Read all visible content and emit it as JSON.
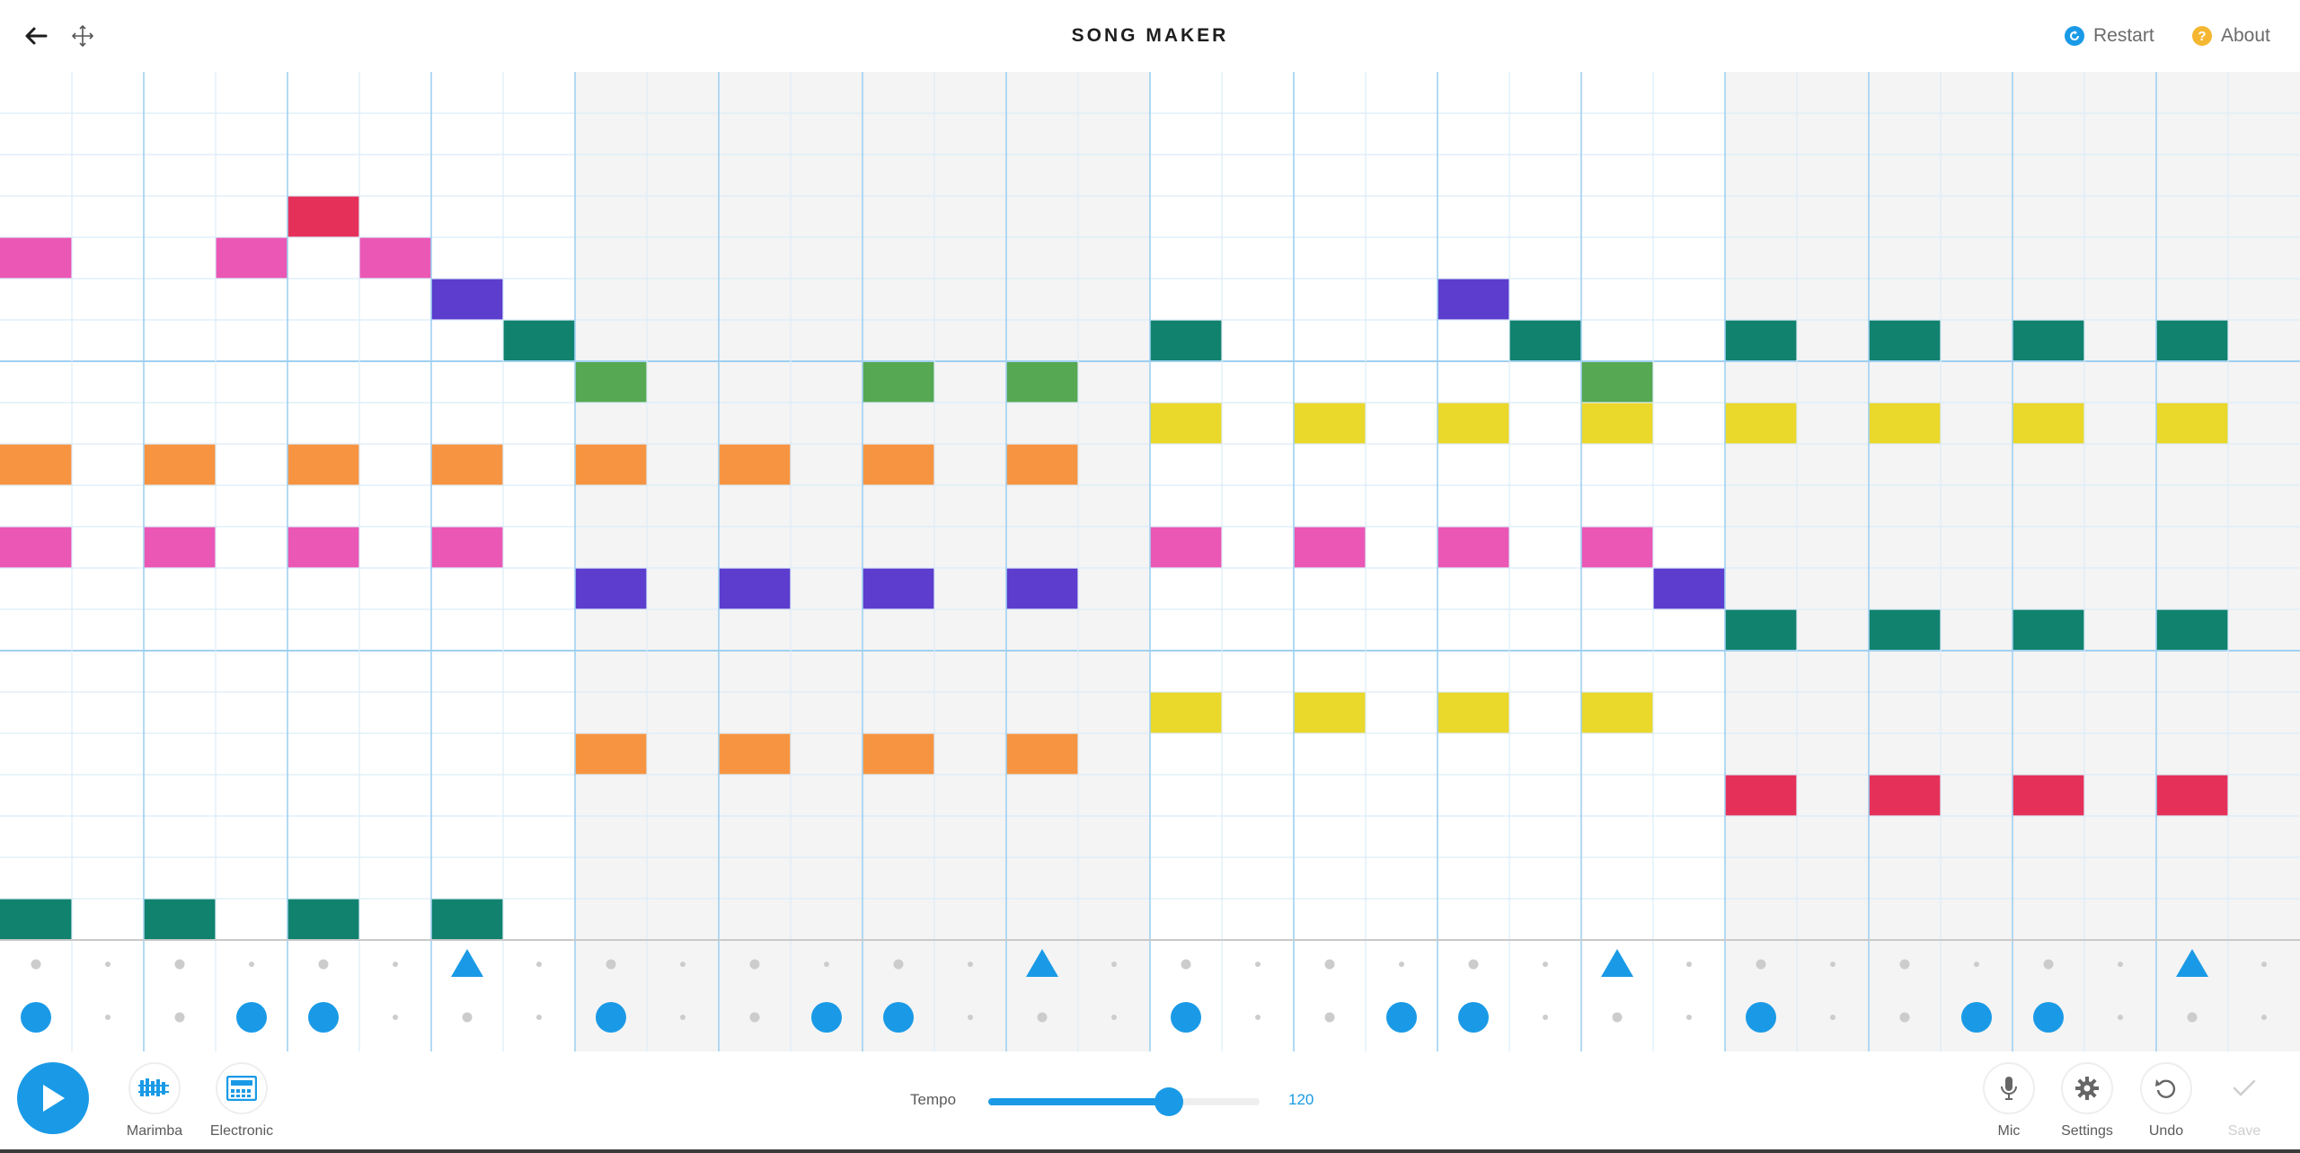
{
  "header": {
    "title": "SONG MAKER",
    "back_icon": "arrow-left-icon",
    "move_icon": "move-arrows-icon",
    "restart_label": "Restart",
    "about_label": "About",
    "restart_icon_color": "#1a9ae6",
    "about_icon_color": "#f5b731"
  },
  "grid": {
    "columns": 32,
    "melody_rows": 21,
    "beats_per_bar": 8,
    "row_divider_every": 7,
    "instrument": "Marimba",
    "notes": [
      {
        "row": 3,
        "col": 4,
        "color": "#e5315a"
      },
      {
        "row": 4,
        "col": 0,
        "color": "#ea57b5"
      },
      {
        "row": 4,
        "col": 3,
        "color": "#ea57b5"
      },
      {
        "row": 4,
        "col": 5,
        "color": "#ea57b5"
      },
      {
        "row": 5,
        "col": 6,
        "color": "#5c3dce"
      },
      {
        "row": 5,
        "col": 20,
        "color": "#5c3dce"
      },
      {
        "row": 6,
        "col": 7,
        "color": "#11826e"
      },
      {
        "row": 6,
        "col": 16,
        "color": "#11826e"
      },
      {
        "row": 6,
        "col": 21,
        "color": "#11826e"
      },
      {
        "row": 6,
        "col": 24,
        "color": "#11826e"
      },
      {
        "row": 6,
        "col": 26,
        "color": "#11826e"
      },
      {
        "row": 6,
        "col": 28,
        "color": "#11826e"
      },
      {
        "row": 6,
        "col": 30,
        "color": "#11826e"
      },
      {
        "row": 7,
        "col": 8,
        "color": "#56a852"
      },
      {
        "row": 7,
        "col": 12,
        "color": "#56a852"
      },
      {
        "row": 7,
        "col": 14,
        "color": "#56a852"
      },
      {
        "row": 7,
        "col": 22,
        "color": "#56a852"
      },
      {
        "row": 8,
        "col": 16,
        "color": "#ead82b"
      },
      {
        "row": 8,
        "col": 18,
        "color": "#ead82b"
      },
      {
        "row": 8,
        "col": 20,
        "color": "#ead82b"
      },
      {
        "row": 8,
        "col": 22,
        "color": "#ead82b"
      },
      {
        "row": 8,
        "col": 24,
        "color": "#ead82b"
      },
      {
        "row": 8,
        "col": 26,
        "color": "#ead82b"
      },
      {
        "row": 8,
        "col": 28,
        "color": "#ead82b"
      },
      {
        "row": 8,
        "col": 30,
        "color": "#ead82b"
      },
      {
        "row": 9,
        "col": 0,
        "color": "#f79441"
      },
      {
        "row": 9,
        "col": 2,
        "color": "#f79441"
      },
      {
        "row": 9,
        "col": 4,
        "color": "#f79441"
      },
      {
        "row": 9,
        "col": 6,
        "color": "#f79441"
      },
      {
        "row": 9,
        "col": 8,
        "color": "#f79441"
      },
      {
        "row": 9,
        "col": 10,
        "color": "#f79441"
      },
      {
        "row": 9,
        "col": 12,
        "color": "#f79441"
      },
      {
        "row": 9,
        "col": 14,
        "color": "#f79441"
      },
      {
        "row": 11,
        "col": 0,
        "color": "#ea57b5"
      },
      {
        "row": 11,
        "col": 2,
        "color": "#ea57b5"
      },
      {
        "row": 11,
        "col": 4,
        "color": "#ea57b5"
      },
      {
        "row": 11,
        "col": 6,
        "color": "#ea57b5"
      },
      {
        "row": 11,
        "col": 16,
        "color": "#ea57b5"
      },
      {
        "row": 11,
        "col": 18,
        "color": "#ea57b5"
      },
      {
        "row": 11,
        "col": 20,
        "color": "#ea57b5"
      },
      {
        "row": 11,
        "col": 22,
        "color": "#ea57b5"
      },
      {
        "row": 12,
        "col": 8,
        "color": "#5c3dce"
      },
      {
        "row": 12,
        "col": 10,
        "color": "#5c3dce"
      },
      {
        "row": 12,
        "col": 12,
        "color": "#5c3dce"
      },
      {
        "row": 12,
        "col": 14,
        "color": "#5c3dce"
      },
      {
        "row": 12,
        "col": 23,
        "color": "#5c3dce"
      },
      {
        "row": 13,
        "col": 24,
        "color": "#11826e"
      },
      {
        "row": 13,
        "col": 26,
        "color": "#11826e"
      },
      {
        "row": 13,
        "col": 28,
        "color": "#11826e"
      },
      {
        "row": 13,
        "col": 30,
        "color": "#11826e"
      },
      {
        "row": 15,
        "col": 16,
        "color": "#ead82b"
      },
      {
        "row": 15,
        "col": 18,
        "color": "#ead82b"
      },
      {
        "row": 15,
        "col": 20,
        "color": "#ead82b"
      },
      {
        "row": 15,
        "col": 22,
        "color": "#ead82b"
      },
      {
        "row": 16,
        "col": 8,
        "color": "#f79441"
      },
      {
        "row": 16,
        "col": 10,
        "color": "#f79441"
      },
      {
        "row": 16,
        "col": 12,
        "color": "#f79441"
      },
      {
        "row": 16,
        "col": 14,
        "color": "#f79441"
      },
      {
        "row": 17,
        "col": 24,
        "color": "#e5315a"
      },
      {
        "row": 17,
        "col": 26,
        "color": "#e5315a"
      },
      {
        "row": 17,
        "col": 28,
        "color": "#e5315a"
      },
      {
        "row": 17,
        "col": 30,
        "color": "#e5315a"
      },
      {
        "row": 20,
        "col": 0,
        "color": "#11826e"
      },
      {
        "row": 20,
        "col": 2,
        "color": "#11826e"
      },
      {
        "row": 20,
        "col": 4,
        "color": "#11826e"
      },
      {
        "row": 20,
        "col": 6,
        "color": "#11826e"
      }
    ],
    "percussion_top": [
      6,
      14,
      22,
      30
    ],
    "percussion_bottom": [
      0,
      3,
      4,
      8,
      11,
      12,
      16,
      19,
      20,
      24,
      27,
      28
    ],
    "note_color_tom": "#1a9ae6"
  },
  "controls": {
    "play_icon": "play-icon",
    "instrument_label": "Marimba",
    "percussion_label": "Electronic",
    "tempo_label": "Tempo",
    "tempo_value": "120",
    "tempo_min": 40,
    "tempo_max": 160,
    "mic_label": "Mic",
    "settings_label": "Settings",
    "undo_label": "Undo",
    "save_label": "Save",
    "accent_color": "#1a9ae6"
  }
}
